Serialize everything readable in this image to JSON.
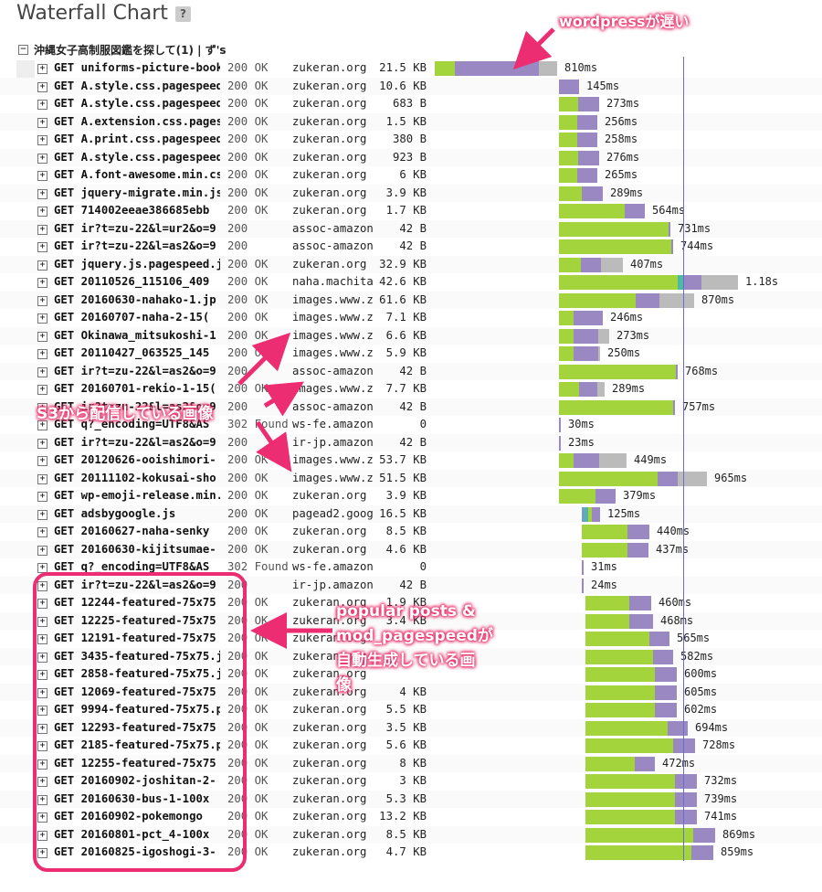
{
  "page": {
    "title": "Waterfall Chart",
    "help_label": "?"
  },
  "group": {
    "toggle": "−",
    "label": "沖縄女子高制服図鑑を探して(1) | ず's"
  },
  "colors": {
    "green": "#a4d43c",
    "purple": "#9a88c2",
    "gray": "#bbbbbb",
    "blue": "#6fa0c8",
    "teal": "#4fb8a4",
    "annotation": "#ec2d71",
    "marker_line": "#6a6ad8"
  },
  "rows": [
    {
      "request": "GET uniforms-picture-book",
      "status": "200 OK",
      "domain": "zukeran.org",
      "size": "21.5 KB",
      "time": "810ms",
      "seg": [
        [
          0,
          22,
          "green"
        ],
        [
          22,
          92,
          "purple"
        ],
        [
          114,
          20,
          "gray"
        ]
      ]
    },
    {
      "request": "GET A.style.css.pagespeed.c",
      "status": "200 OK",
      "domain": "zukeran.org",
      "size": "10.6 KB",
      "time": "145ms",
      "seg": [
        [
          136,
          22,
          "purple"
        ]
      ]
    },
    {
      "request": "GET A.style.css.pagespeed.c",
      "status": "200 OK",
      "domain": "zukeran.org",
      "size": "683 B",
      "time": "273ms",
      "seg": [
        [
          136,
          21,
          "green"
        ],
        [
          157,
          23,
          "purple"
        ]
      ]
    },
    {
      "request": "GET A.extension.css.pagespe",
      "status": "200 OK",
      "domain": "zukeran.org",
      "size": "1.5 KB",
      "time": "256ms",
      "seg": [
        [
          136,
          20,
          "green"
        ],
        [
          156,
          22,
          "purple"
        ]
      ]
    },
    {
      "request": "GET A.print.css.pagespeed.c",
      "status": "200 OK",
      "domain": "zukeran.org",
      "size": "380 B",
      "time": "258ms",
      "seg": [
        [
          136,
          20,
          "green"
        ],
        [
          156,
          22,
          "purple"
        ]
      ]
    },
    {
      "request": "GET A.style.css.pagespeed.c",
      "status": "200 OK",
      "domain": "zukeran.org",
      "size": "923 B",
      "time": "276ms",
      "seg": [
        [
          136,
          21,
          "green"
        ],
        [
          157,
          23,
          "purple"
        ]
      ]
    },
    {
      "request": "GET A.font-awesome.min.cs",
      "status": "200 OK",
      "domain": "zukeran.org",
      "size": "6 KB",
      "time": "265ms",
      "seg": [
        [
          136,
          20,
          "green"
        ],
        [
          156,
          22,
          "purple"
        ]
      ]
    },
    {
      "request": "GET jquery-migrate.min.js.p",
      "status": "200 OK",
      "domain": "zukeran.org",
      "size": "3.9 KB",
      "time": "289ms",
      "seg": [
        [
          136,
          25,
          "green"
        ],
        [
          161,
          23,
          "purple"
        ]
      ]
    },
    {
      "request": "GET 714002eeae386685ebb",
      "status": "200 OK",
      "domain": "zukeran.org",
      "size": "1.7 KB",
      "time": "564ms",
      "seg": [
        [
          136,
          72,
          "green"
        ],
        [
          208,
          22,
          "purple"
        ]
      ]
    },
    {
      "request": "GET ir?t=zu-22&l=ur2&o=9",
      "status": "200",
      "domain": "assoc-amazon",
      "size": "42 B",
      "time": "731ms",
      "seg": [
        [
          136,
          120,
          "green"
        ],
        [
          256,
          2,
          "purple"
        ]
      ]
    },
    {
      "request": "GET ir?t=zu-22&l=as2&o=9",
      "status": "200",
      "domain": "assoc-amazon",
      "size": "42 B",
      "time": "744ms",
      "seg": [
        [
          136,
          123,
          "green"
        ],
        [
          259,
          2,
          "purple"
        ]
      ]
    },
    {
      "request": "GET jquery.js.pagespeed.jm.",
      "status": "200 OK",
      "domain": "zukeran.org",
      "size": "32.9 KB",
      "time": "407ms",
      "seg": [
        [
          136,
          24,
          "green"
        ],
        [
          160,
          22,
          "purple"
        ],
        [
          182,
          24,
          "gray"
        ]
      ]
    },
    {
      "request": "GET 20110526_115106_409",
      "status": "200 OK",
      "domain": "naha.machitan",
      "size": "42.6 KB",
      "time": "1.18s",
      "seg": [
        [
          136,
          130,
          "green"
        ],
        [
          266,
          6,
          "teal"
        ],
        [
          272,
          20,
          "purple"
        ],
        [
          292,
          40,
          "gray"
        ]
      ]
    },
    {
      "request": "GET 20160630-nahako-1.jp",
      "status": "200 OK",
      "domain": "images.www.zu",
      "size": "61.6 KB",
      "time": "870ms",
      "seg": [
        [
          136,
          84,
          "green"
        ],
        [
          220,
          26,
          "purple"
        ],
        [
          246,
          38,
          "gray"
        ]
      ]
    },
    {
      "request": "GET 20160707-naha-2-15(",
      "status": "200 OK",
      "domain": "images.www.zu",
      "size": "7.1 KB",
      "time": "246ms",
      "seg": [
        [
          136,
          16,
          "green"
        ],
        [
          152,
          32,
          "purple"
        ]
      ]
    },
    {
      "request": "GET Okinawa_mitsukoshi-1",
      "status": "200 OK",
      "domain": "images.www.zu",
      "size": "6.6 KB",
      "time": "273ms",
      "seg": [
        [
          136,
          16,
          "green"
        ],
        [
          152,
          27,
          "purple"
        ],
        [
          179,
          12,
          "gray"
        ]
      ]
    },
    {
      "request": "GET 20110427_063525_145",
      "status": "200 OK",
      "domain": "images.www.zu",
      "size": "5.9 KB",
      "time": "250ms",
      "seg": [
        [
          136,
          16,
          "green"
        ],
        [
          152,
          27,
          "purple"
        ],
        [
          179,
          2,
          "gray"
        ]
      ]
    },
    {
      "request": "GET ir?t=zu-22&l=as2&o=9",
      "status": "200",
      "domain": "assoc-amazon",
      "size": "42 B",
      "time": "768ms",
      "seg": [
        [
          136,
          128,
          "green"
        ],
        [
          264,
          2,
          "purple"
        ]
      ]
    },
    {
      "request": "GET 20160701-rekio-1-15(",
      "status": "200 OK",
      "domain": "images.www.zu",
      "size": "7.7 KB",
      "time": "289ms",
      "seg": [
        [
          136,
          22,
          "green"
        ],
        [
          158,
          20,
          "purple"
        ],
        [
          178,
          8,
          "gray"
        ]
      ]
    },
    {
      "request": "GET ir?t=zu-22&l=as2&o=9",
      "status": "200",
      "domain": "assoc-amazon",
      "size": "42 B",
      "time": "757ms",
      "seg": [
        [
          136,
          125,
          "green"
        ],
        [
          261,
          2,
          "purple"
        ]
      ]
    },
    {
      "request": "GET q?_encoding=UTF8&AS",
      "status": "302 Found",
      "domain": "ws-fe.amazon-",
      "size": "0",
      "time": "30ms",
      "seg": [
        [
          136,
          2,
          "purple"
        ]
      ]
    },
    {
      "request": "GET ir?t=zu-22&l=as2&o=9",
      "status": "200",
      "domain": "ir-jp.amazon-a",
      "size": "42 B",
      "time": "23ms",
      "seg": [
        [
          136,
          2,
          "purple"
        ]
      ]
    },
    {
      "request": "GET 20120626-ooishimori-",
      "status": "200 OK",
      "domain": "images.www.zu",
      "size": "53.7 KB",
      "time": "449ms",
      "seg": [
        [
          136,
          16,
          "green"
        ],
        [
          152,
          28,
          "purple"
        ],
        [
          180,
          30,
          "gray"
        ]
      ]
    },
    {
      "request": "GET 20111102-kokusai-sho",
      "status": "200 OK",
      "domain": "images.www.zu",
      "size": "51.5 KB",
      "time": "965ms",
      "seg": [
        [
          136,
          108,
          "green"
        ],
        [
          244,
          22,
          "purple"
        ],
        [
          266,
          32,
          "gray"
        ]
      ]
    },
    {
      "request": "GET wp-emoji-release.min.j",
      "status": "200 OK",
      "domain": "zukeran.org",
      "size": "3.9 KB",
      "time": "379ms",
      "seg": [
        [
          136,
          40,
          "green"
        ],
        [
          176,
          22,
          "purple"
        ]
      ]
    },
    {
      "request": "GET adsbygoogle.js",
      "status": "200 OK",
      "domain": "pagead2.googl",
      "size": "16.5 KB",
      "time": "125ms",
      "seg": [
        [
          161,
          4,
          "blue"
        ],
        [
          165,
          3,
          "teal"
        ],
        [
          168,
          4,
          "green"
        ],
        [
          172,
          9,
          "purple"
        ]
      ]
    },
    {
      "request": "GET 20160627-naha-senky",
      "status": "200 OK",
      "domain": "zukeran.org",
      "size": "8.5 KB",
      "time": "440ms",
      "seg": [
        [
          161,
          50,
          "green"
        ],
        [
          211,
          24,
          "purple"
        ]
      ]
    },
    {
      "request": "GET 20160630-kijitsumae-",
      "status": "200 OK",
      "domain": "zukeran.org",
      "size": "4.6 KB",
      "time": "437ms",
      "seg": [
        [
          161,
          50,
          "green"
        ],
        [
          211,
          23,
          "purple"
        ]
      ]
    },
    {
      "request": "GET q?_encoding=UTF8&AS",
      "status": "302 Found",
      "domain": "ws-fe.amazon-",
      "size": "0",
      "time": "31ms",
      "seg": [
        [
          161,
          2,
          "purple"
        ]
      ]
    },
    {
      "request": "GET ir?t=zu-22&l=as2&o=9",
      "status": "200",
      "domain": "ir-jp.amazon-a",
      "size": "42 B",
      "time": "24ms",
      "seg": [
        [
          161,
          2,
          "purple"
        ]
      ]
    },
    {
      "request": "GET 12244-featured-75x75",
      "status": "200 OK",
      "domain": "zukeran.org",
      "size": "1.9 KB",
      "time": "460ms",
      "seg": [
        [
          165,
          48,
          "green"
        ],
        [
          213,
          24,
          "purple"
        ]
      ]
    },
    {
      "request": "GET 12225-featured-75x75",
      "status": "200 OK",
      "domain": "zukeran.org",
      "size": "3.4 KB",
      "time": "468ms",
      "seg": [
        [
          165,
          48,
          "green"
        ],
        [
          213,
          26,
          "purple"
        ]
      ]
    },
    {
      "request": "GET 12191-featured-75x75",
      "status": "200 OK",
      "domain": "zukeran.org",
      "size": "",
      "time": "565ms",
      "seg": [
        [
          165,
          70,
          "green"
        ],
        [
          235,
          22,
          "purple"
        ]
      ]
    },
    {
      "request": "GET 3435-featured-75x75.j",
      "status": "200 OK",
      "domain": "zukeran.org",
      "size": "",
      "time": "582ms",
      "seg": [
        [
          165,
          74,
          "green"
        ],
        [
          239,
          22,
          "purple"
        ]
      ]
    },
    {
      "request": "GET 2858-featured-75x75.j",
      "status": "200 OK",
      "domain": "zukeran.org",
      "size": "",
      "time": "600ms",
      "seg": [
        [
          165,
          76,
          "green"
        ],
        [
          241,
          24,
          "purple"
        ]
      ]
    },
    {
      "request": "GET 12069-featured-75x75",
      "status": "200 OK",
      "domain": "zukeran.org",
      "size": "4 KB",
      "time": "605ms",
      "seg": [
        [
          165,
          76,
          "green"
        ],
        [
          241,
          24,
          "purple"
        ]
      ]
    },
    {
      "request": "GET 9994-featured-75x75.p",
      "status": "200 OK",
      "domain": "zukeran.org",
      "size": "5.5 KB",
      "time": "602ms",
      "seg": [
        [
          165,
          76,
          "green"
        ],
        [
          241,
          24,
          "purple"
        ]
      ]
    },
    {
      "request": "GET 12293-featured-75x75",
      "status": "200 OK",
      "domain": "zukeran.org",
      "size": "3.5 KB",
      "time": "694ms",
      "seg": [
        [
          165,
          90,
          "green"
        ],
        [
          255,
          22,
          "purple"
        ]
      ]
    },
    {
      "request": "GET 2185-featured-75x75.p",
      "status": "200 OK",
      "domain": "zukeran.org",
      "size": "5.6 KB",
      "time": "728ms",
      "seg": [
        [
          165,
          96,
          "green"
        ],
        [
          261,
          24,
          "purple"
        ]
      ]
    },
    {
      "request": "GET 12255-featured-75x75",
      "status": "200 OK",
      "domain": "zukeran.org",
      "size": "8 KB",
      "time": "472ms",
      "seg": [
        [
          165,
          54,
          "green"
        ],
        [
          219,
          22,
          "purple"
        ]
      ]
    },
    {
      "request": "GET 20160902-joshitan-2-",
      "status": "200 OK",
      "domain": "zukeran.org",
      "size": "3 KB",
      "time": "732ms",
      "seg": [
        [
          165,
          98,
          "green"
        ],
        [
          263,
          24,
          "purple"
        ]
      ]
    },
    {
      "request": "GET 20160630-bus-1-100x",
      "status": "200 OK",
      "domain": "zukeran.org",
      "size": "5.3 KB",
      "time": "739ms",
      "seg": [
        [
          165,
          98,
          "green"
        ],
        [
          263,
          24,
          "purple"
        ]
      ]
    },
    {
      "request": "GET 20160902-pokemongo",
      "status": "200 OK",
      "domain": "zukeran.org",
      "size": "13.2 KB",
      "time": "741ms",
      "seg": [
        [
          165,
          98,
          "green"
        ],
        [
          263,
          24,
          "purple"
        ]
      ]
    },
    {
      "request": "GET 20160801-pct_4-100x",
      "status": "200 OK",
      "domain": "zukeran.org",
      "size": "8.5 KB",
      "time": "869ms",
      "seg": [
        [
          165,
          118,
          "green"
        ],
        [
          283,
          24,
          "purple"
        ]
      ]
    },
    {
      "request": "GET 20160825-igoshogi-3-",
      "status": "200 OK",
      "domain": "zukeran.org",
      "size": "4.7 KB",
      "time": "859ms",
      "seg": [
        [
          165,
          116,
          "green"
        ],
        [
          281,
          24,
          "purple"
        ]
      ]
    }
  ],
  "annotations": {
    "wordpress": "wordpressが遅い",
    "s3": "S3から配信している画像",
    "popular_line1": "popular posts &",
    "popular_line2": "mod_pagespeedが",
    "popular_line3": "自動生成している画",
    "popular_line4": "像"
  }
}
